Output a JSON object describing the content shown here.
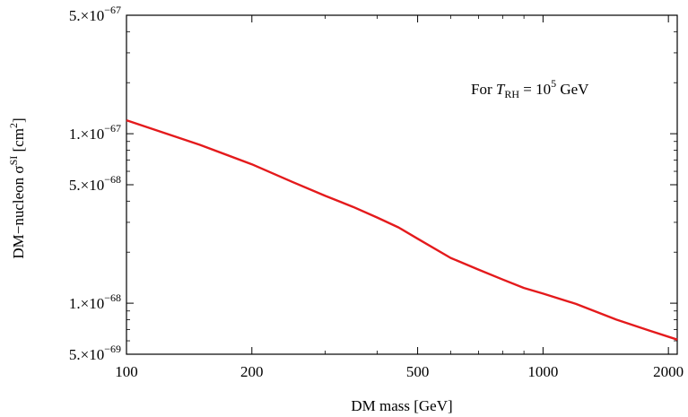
{
  "chart_data": {
    "type": "line",
    "xlabel": "DM mass [GeV]",
    "ylabel_parts": {
      "a": "DM−nucleon σ",
      "b": "SI",
      "c": " [cm",
      "d": "2",
      "e": "]"
    },
    "annotation": {
      "a": "For ",
      "b": "T",
      "c": "RH",
      "d": "  =  10",
      "e": "5",
      "f": " GeV"
    },
    "x_scale": "log",
    "y_scale": "log",
    "xlim": [
      100,
      2100
    ],
    "ylim": [
      5e-69,
      5e-67
    ],
    "x_ticks": [
      {
        "value": 100,
        "label": "100"
      },
      {
        "value": 200,
        "label": "200"
      },
      {
        "value": 500,
        "label": "500"
      },
      {
        "value": 1000,
        "label": "1000"
      },
      {
        "value": 2000,
        "label": "2000"
      }
    ],
    "y_ticks": [
      {
        "value": 5e-69,
        "mant": "5.×10",
        "exp": "−69"
      },
      {
        "value": 1e-68,
        "mant": "1.×10",
        "exp": "−68"
      },
      {
        "value": 5e-68,
        "mant": "5.×10",
        "exp": "−68"
      },
      {
        "value": 1e-67,
        "mant": "1.×10",
        "exp": "−67"
      },
      {
        "value": 5e-67,
        "mant": "5.×10",
        "exp": "−67"
      }
    ],
    "series": [
      {
        "color": "#e41a1c",
        "x": [
          100,
          150,
          200,
          250,
          300,
          350,
          400,
          450,
          500,
          600,
          700,
          800,
          900,
          1000,
          1200,
          1500,
          1800,
          2100
        ],
        "y": [
          1.2e-67,
          8.6e-68,
          6.6e-68,
          5.2e-68,
          4.3e-68,
          3.7e-68,
          3.2e-68,
          2.8e-68,
          2.4e-68,
          1.85e-68,
          1.58e-68,
          1.38e-68,
          1.23e-68,
          1.14e-68,
          9.9e-69,
          8e-69,
          6.9e-69,
          6.1e-69
        ]
      }
    ]
  }
}
